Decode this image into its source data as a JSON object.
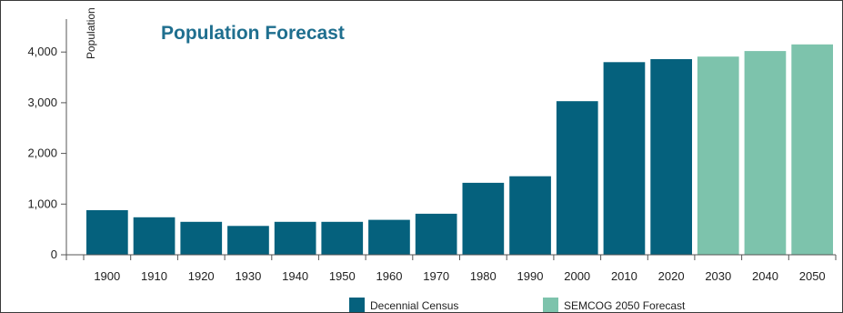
{
  "chart_data": {
    "type": "bar",
    "title": "Population Forecast",
    "ylabel": "Population",
    "xlabel": "",
    "ylim": [
      0,
      4300
    ],
    "yticks": [
      0,
      1000,
      2000,
      3000,
      4000
    ],
    "ytick_labels": [
      "0",
      "1,000",
      "2,000",
      "3,000",
      "4,000"
    ],
    "categories": [
      "1900",
      "1910",
      "1920",
      "1930",
      "1940",
      "1950",
      "1960",
      "1970",
      "1980",
      "1990",
      "2000",
      "2010",
      "2020",
      "2030",
      "2040",
      "2050"
    ],
    "values": [
      880,
      740,
      650,
      570,
      650,
      650,
      690,
      810,
      1420,
      1550,
      3030,
      3800,
      3860,
      3910,
      4020,
      4150
    ],
    "series": [
      {
        "name": "Decennial Census",
        "color": "#05617d",
        "categories": [
          "1900",
          "1910",
          "1920",
          "1930",
          "1940",
          "1950",
          "1960",
          "1970",
          "1980",
          "1990",
          "2000",
          "2010",
          "2020"
        ]
      },
      {
        "name": "SEMCOG 2050 Forecast",
        "color": "#7dc3ac",
        "categories": [
          "2030",
          "2040",
          "2050"
        ]
      }
    ],
    "grid": false,
    "legend_position": "bottom"
  }
}
